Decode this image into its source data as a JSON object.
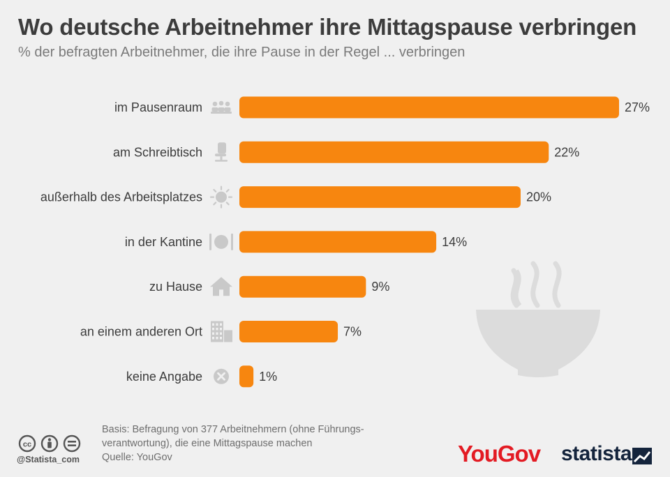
{
  "title": "Wo deutsche Arbeitnehmer ihre Mittagspause verbringen",
  "subtitle": "% der befragten Arbeitnehmer, die ihre Pause in der Regel ... verbringen",
  "colors": {
    "bar": "#f7860f",
    "icon": "#c9c9c9",
    "background": "#f0f0f0"
  },
  "chart_data": {
    "type": "bar",
    "orientation": "horizontal",
    "unit": "%",
    "categories": [
      "im Pausenraum",
      "am Schreibtisch",
      "außerhalb des Arbeitsplatzes",
      "in der Kantine",
      "zu Hause",
      "an einem anderen Ort",
      "keine Angabe"
    ],
    "values": [
      27,
      22,
      20,
      14,
      9,
      7,
      1
    ],
    "value_labels": [
      "27%",
      "22%",
      "20%",
      "14%",
      "9%",
      "7%",
      "1%"
    ],
    "icons": [
      "people-icon",
      "office-chair-icon",
      "sun-icon",
      "plate-cutlery-icon",
      "house-icon",
      "building-icon",
      "x-circle-icon"
    ],
    "xlim": [
      0,
      27
    ],
    "grid": false,
    "legend": "none"
  },
  "footer": {
    "basis_line1": "Basis: Befragung von 377 Arbeitnehmern (ohne Führungs-",
    "basis_line2": "verantwortung), die eine Mittagspause machen",
    "source": "Quelle: YouGov",
    "handle": "@Statista_com",
    "license_icons": [
      "cc-icon",
      "attribution-icon",
      "no-derivatives-icon"
    ]
  },
  "logos": {
    "yougov": "YouGov",
    "statista": "statista"
  }
}
